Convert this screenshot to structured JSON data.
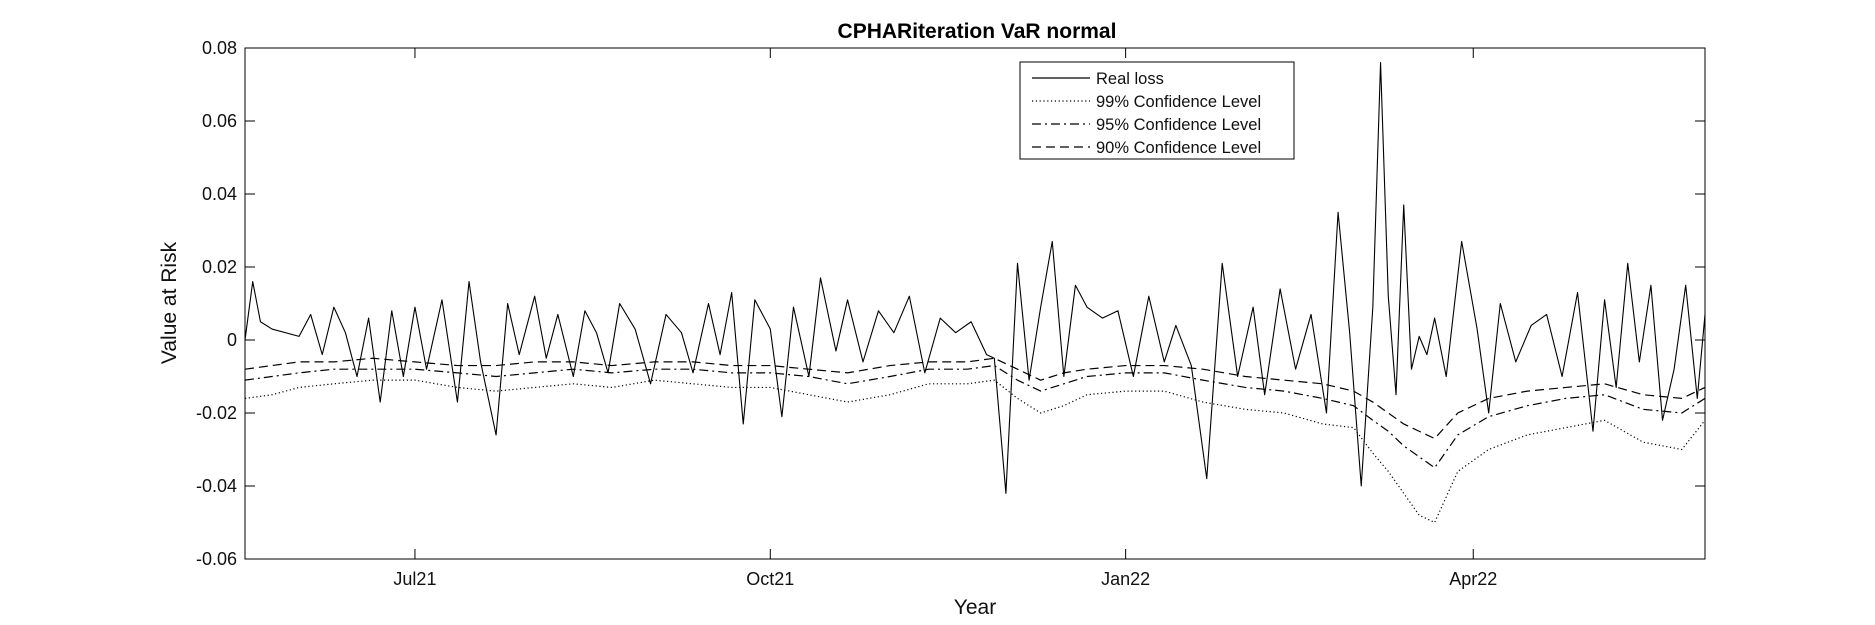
{
  "chart_data": {
    "type": "line",
    "title": "CPHARiteration VaR normal",
    "xlabel": "Year",
    "ylabel": "Value at Risk",
    "x_tick_labels": [
      "Jul21",
      "Oct21",
      "Jan22",
      "Apr22"
    ],
    "x_tick_dates": [
      "2021-07-01",
      "2021-10-01",
      "2022-01-01",
      "2022-04-01"
    ],
    "x_range": [
      "2021-05-18",
      "2022-05-31"
    ],
    "ylim": [
      -0.06,
      0.08
    ],
    "y_ticks": [
      -0.06,
      -0.04,
      -0.02,
      0,
      0.02,
      0.04,
      0.06,
      0.08
    ],
    "y_tick_labels": [
      "-0.06",
      "-0.04",
      "-0.02",
      "0",
      "0.02",
      "0.04",
      "0.06",
      "0.08"
    ],
    "grid": false,
    "legend_position": "top-center",
    "series": [
      {
        "name": "Real loss",
        "style": "solid",
        "color": "#000000",
        "x": [
          "2021-05-18",
          "2021-05-20",
          "2021-05-22",
          "2021-05-25",
          "2021-06-01",
          "2021-06-04",
          "2021-06-07",
          "2021-06-10",
          "2021-06-13",
          "2021-06-16",
          "2021-06-19",
          "2021-06-22",
          "2021-06-25",
          "2021-06-28",
          "2021-07-01",
          "2021-07-04",
          "2021-07-08",
          "2021-07-12",
          "2021-07-15",
          "2021-07-18",
          "2021-07-22",
          "2021-07-25",
          "2021-07-28",
          "2021-08-01",
          "2021-08-04",
          "2021-08-07",
          "2021-08-11",
          "2021-08-14",
          "2021-08-17",
          "2021-08-20",
          "2021-08-23",
          "2021-08-27",
          "2021-08-31",
          "2021-09-04",
          "2021-09-08",
          "2021-09-11",
          "2021-09-15",
          "2021-09-18",
          "2021-09-21",
          "2021-09-24",
          "2021-09-27",
          "2021-10-01",
          "2021-10-04",
          "2021-10-07",
          "2021-10-11",
          "2021-10-14",
          "2021-10-18",
          "2021-10-21",
          "2021-10-25",
          "2021-10-29",
          "2021-11-02",
          "2021-11-06",
          "2021-11-10",
          "2021-11-14",
          "2021-11-18",
          "2021-11-22",
          "2021-11-26",
          "2021-11-28",
          "2021-12-01",
          "2021-12-04",
          "2021-12-07",
          "2021-12-10",
          "2021-12-13",
          "2021-12-16",
          "2021-12-19",
          "2021-12-22",
          "2021-12-26",
          "2021-12-30",
          "2022-01-03",
          "2022-01-07",
          "2022-01-11",
          "2022-01-14",
          "2022-01-18",
          "2022-01-22",
          "2022-01-26",
          "2022-01-30",
          "2022-02-03",
          "2022-02-06",
          "2022-02-10",
          "2022-02-14",
          "2022-02-18",
          "2022-02-22",
          "2022-02-25",
          "2022-02-28",
          "2022-03-03",
          "2022-03-06",
          "2022-03-08",
          "2022-03-10",
          "2022-03-12",
          "2022-03-14",
          "2022-03-16",
          "2022-03-18",
          "2022-03-20",
          "2022-03-22",
          "2022-03-25",
          "2022-03-29",
          "2022-04-02",
          "2022-04-05",
          "2022-04-08",
          "2022-04-12",
          "2022-04-16",
          "2022-04-20",
          "2022-04-24",
          "2022-04-28",
          "2022-05-02",
          "2022-05-05",
          "2022-05-08",
          "2022-05-11",
          "2022-05-14",
          "2022-05-17",
          "2022-05-20",
          "2022-05-23",
          "2022-05-26",
          "2022-05-29",
          "2022-05-31"
        ],
        "y": [
          0,
          0.016,
          0.005,
          0.003,
          0.001,
          0.007,
          -0.004,
          0.009,
          0.002,
          -0.01,
          0.006,
          -0.017,
          0.008,
          -0.01,
          0.009,
          -0.008,
          0.011,
          -0.017,
          0.016,
          -0.006,
          -0.026,
          0.01,
          -0.004,
          0.012,
          -0.005,
          0.007,
          -0.01,
          0.008,
          0.002,
          -0.009,
          0.01,
          0.003,
          -0.012,
          0.007,
          0.002,
          -0.009,
          0.01,
          -0.004,
          0.013,
          -0.023,
          0.011,
          0.003,
          -0.021,
          0.009,
          -0.01,
          0.017,
          -0.003,
          0.011,
          -0.006,
          0.008,
          0.002,
          0.012,
          -0.009,
          0.006,
          0.002,
          0.005,
          -0.004,
          -0.005,
          -0.042,
          0.021,
          -0.011,
          0.009,
          0.027,
          -0.01,
          0.015,
          0.009,
          0.006,
          0.008,
          -0.01,
          0.012,
          -0.006,
          0.004,
          -0.007,
          -0.038,
          0.021,
          -0.01,
          0.009,
          -0.015,
          0.014,
          -0.008,
          0.007,
          -0.02,
          0.035,
          0.002,
          -0.04,
          0.009,
          0.076,
          0.012,
          -0.015,
          0.037,
          -0.008,
          0.001,
          -0.004,
          0.006,
          -0.01,
          0.027,
          0.003,
          -0.02,
          0.01,
          -0.006,
          0.004,
          0.007,
          -0.01,
          0.013,
          -0.025,
          0.011,
          -0.013,
          0.021,
          -0.006,
          0.015,
          -0.022,
          -0.008,
          0.015,
          -0.016,
          0.007
        ]
      },
      {
        "name": "99% Confidence Level",
        "style": "dotted",
        "color": "#000000",
        "x": [
          "2021-05-18",
          "2021-05-25",
          "2021-06-01",
          "2021-06-10",
          "2021-06-20",
          "2021-07-01",
          "2021-07-12",
          "2021-07-22",
          "2021-08-01",
          "2021-08-11",
          "2021-08-21",
          "2021-09-01",
          "2021-09-11",
          "2021-09-21",
          "2021-10-01",
          "2021-10-11",
          "2021-10-21",
          "2021-11-01",
          "2021-11-11",
          "2021-11-21",
          "2021-11-28",
          "2021-12-04",
          "2021-12-10",
          "2021-12-16",
          "2021-12-22",
          "2022-01-01",
          "2022-01-11",
          "2022-01-21",
          "2022-02-01",
          "2022-02-11",
          "2022-02-21",
          "2022-03-01",
          "2022-03-06",
          "2022-03-10",
          "2022-03-14",
          "2022-03-18",
          "2022-03-22",
          "2022-03-28",
          "2022-04-05",
          "2022-04-15",
          "2022-04-25",
          "2022-05-05",
          "2022-05-15",
          "2022-05-25",
          "2022-05-31"
        ],
        "y": [
          -0.016,
          -0.015,
          -0.013,
          -0.012,
          -0.011,
          -0.011,
          -0.013,
          -0.014,
          -0.013,
          -0.012,
          -0.013,
          -0.011,
          -0.012,
          -0.013,
          -0.013,
          -0.015,
          -0.017,
          -0.015,
          -0.012,
          -0.012,
          -0.011,
          -0.016,
          -0.02,
          -0.018,
          -0.015,
          -0.014,
          -0.014,
          -0.017,
          -0.019,
          -0.02,
          -0.023,
          -0.024,
          -0.031,
          -0.036,
          -0.042,
          -0.048,
          -0.05,
          -0.036,
          -0.03,
          -0.026,
          -0.024,
          -0.022,
          -0.028,
          -0.03,
          -0.022
        ]
      },
      {
        "name": "95% Confidence Level",
        "style": "dashdot",
        "color": "#000000",
        "x": [
          "2021-05-18",
          "2021-05-25",
          "2021-06-01",
          "2021-06-10",
          "2021-06-20",
          "2021-07-01",
          "2021-07-12",
          "2021-07-22",
          "2021-08-01",
          "2021-08-11",
          "2021-08-21",
          "2021-09-01",
          "2021-09-11",
          "2021-09-21",
          "2021-10-01",
          "2021-10-11",
          "2021-10-21",
          "2021-11-01",
          "2021-11-11",
          "2021-11-21",
          "2021-11-28",
          "2021-12-04",
          "2021-12-10",
          "2021-12-16",
          "2021-12-22",
          "2022-01-01",
          "2022-01-11",
          "2022-01-21",
          "2022-02-01",
          "2022-02-11",
          "2022-02-21",
          "2022-03-01",
          "2022-03-06",
          "2022-03-10",
          "2022-03-14",
          "2022-03-18",
          "2022-03-22",
          "2022-03-28",
          "2022-04-05",
          "2022-04-15",
          "2022-04-25",
          "2022-05-05",
          "2022-05-15",
          "2022-05-25",
          "2022-05-31"
        ],
        "y": [
          -0.011,
          -0.01,
          -0.009,
          -0.008,
          -0.008,
          -0.008,
          -0.009,
          -0.01,
          -0.009,
          -0.008,
          -0.009,
          -0.008,
          -0.008,
          -0.009,
          -0.009,
          -0.01,
          -0.012,
          -0.01,
          -0.008,
          -0.008,
          -0.007,
          -0.011,
          -0.014,
          -0.012,
          -0.01,
          -0.009,
          -0.009,
          -0.011,
          -0.013,
          -0.014,
          -0.016,
          -0.018,
          -0.022,
          -0.025,
          -0.029,
          -0.032,
          -0.035,
          -0.026,
          -0.021,
          -0.018,
          -0.016,
          -0.015,
          -0.019,
          -0.02,
          -0.016
        ]
      },
      {
        "name": "90% Confidence Level",
        "style": "dashed",
        "color": "#000000",
        "x": [
          "2021-05-18",
          "2021-05-25",
          "2021-06-01",
          "2021-06-10",
          "2021-06-20",
          "2021-07-01",
          "2021-07-12",
          "2021-07-22",
          "2021-08-01",
          "2021-08-11",
          "2021-08-21",
          "2021-09-01",
          "2021-09-11",
          "2021-09-21",
          "2021-10-01",
          "2021-10-11",
          "2021-10-21",
          "2021-11-01",
          "2021-11-11",
          "2021-11-21",
          "2021-11-28",
          "2021-12-04",
          "2021-12-10",
          "2021-12-16",
          "2021-12-22",
          "2022-01-01",
          "2022-01-11",
          "2022-01-21",
          "2022-02-01",
          "2022-02-11",
          "2022-02-21",
          "2022-03-01",
          "2022-03-06",
          "2022-03-10",
          "2022-03-14",
          "2022-03-18",
          "2022-03-22",
          "2022-03-28",
          "2022-04-05",
          "2022-04-15",
          "2022-04-25",
          "2022-05-05",
          "2022-05-15",
          "2022-05-25",
          "2022-05-31"
        ],
        "y": [
          -0.008,
          -0.007,
          -0.006,
          -0.006,
          -0.005,
          -0.006,
          -0.007,
          -0.007,
          -0.006,
          -0.006,
          -0.007,
          -0.006,
          -0.006,
          -0.007,
          -0.007,
          -0.008,
          -0.009,
          -0.007,
          -0.006,
          -0.006,
          -0.005,
          -0.008,
          -0.011,
          -0.009,
          -0.008,
          -0.007,
          -0.007,
          -0.008,
          -0.01,
          -0.011,
          -0.012,
          -0.014,
          -0.017,
          -0.02,
          -0.023,
          -0.025,
          -0.027,
          -0.02,
          -0.016,
          -0.014,
          -0.013,
          -0.012,
          -0.015,
          -0.016,
          -0.013
        ]
      }
    ]
  }
}
